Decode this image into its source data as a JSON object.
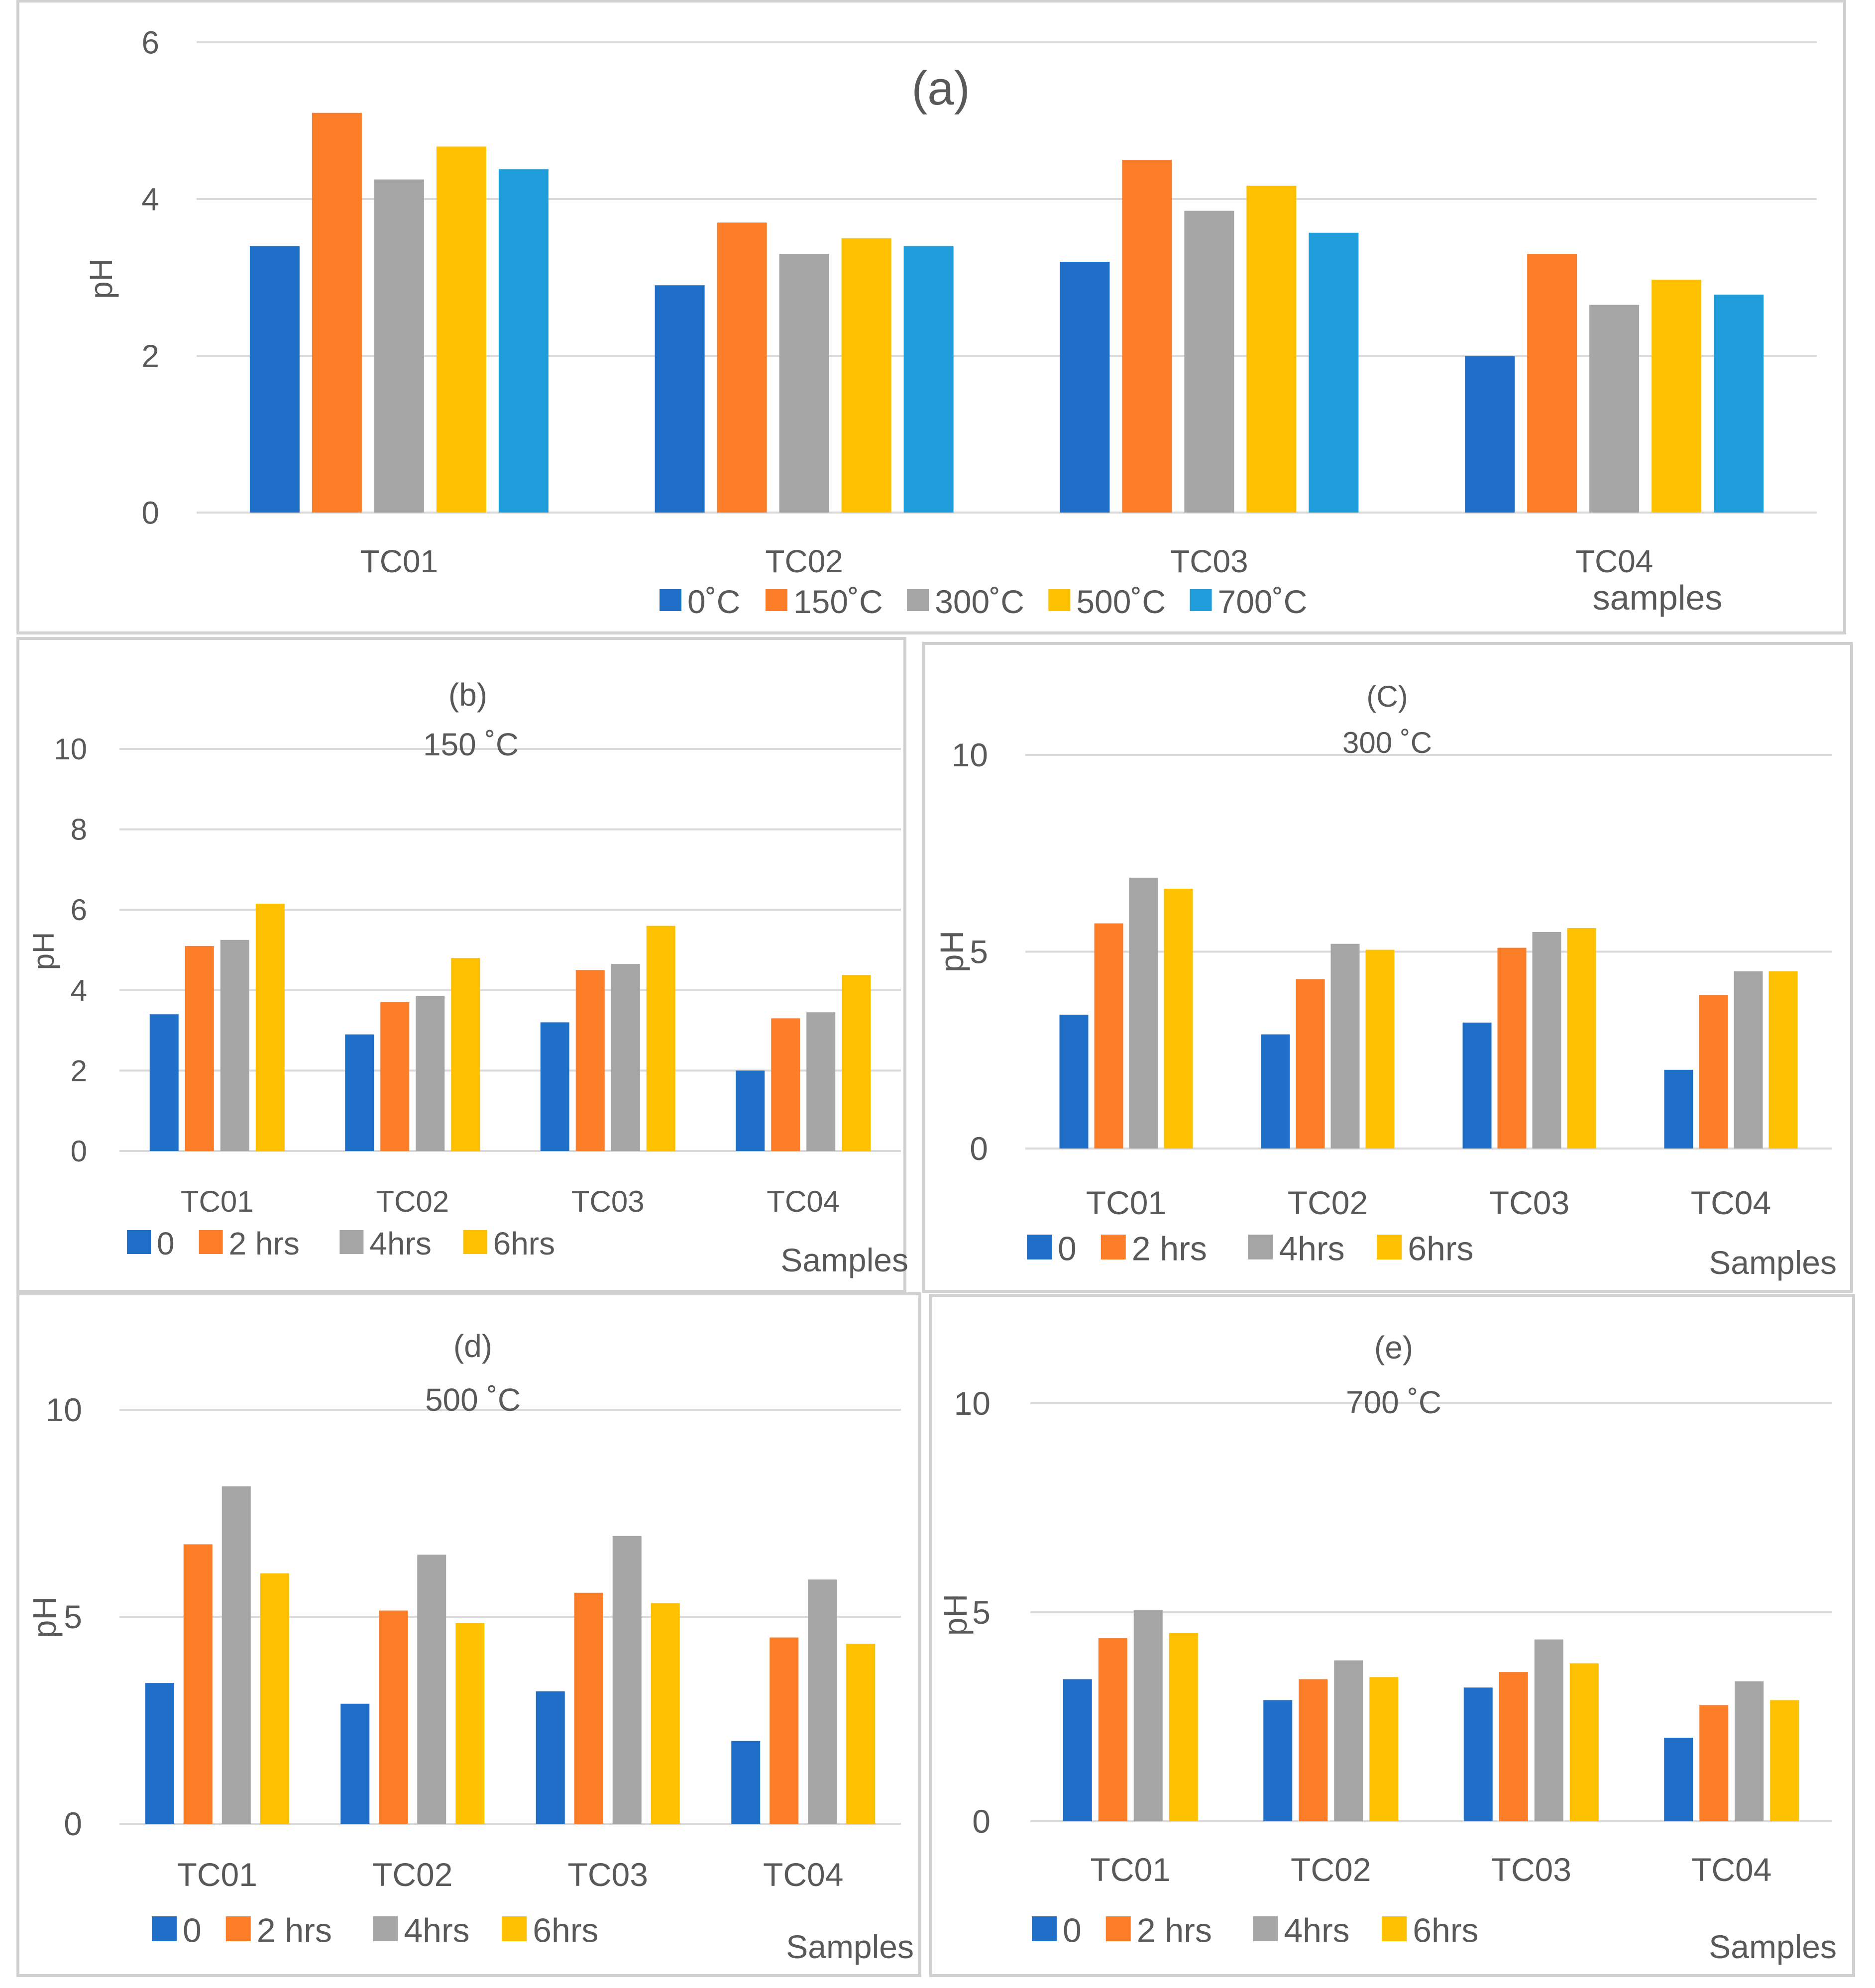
{
  "colors": {
    "c0": "#1F6FC9",
    "c1": "#FB7D27",
    "c2": "#A5A5A5",
    "c3": "#FFC000",
    "c4": "#1F9DDA",
    "grid": "#D9D9D9",
    "frame": "#D0D0D0",
    "text": "#595959"
  },
  "chart_data": [
    {
      "id": "a",
      "type": "bar",
      "title": "(a)",
      "subtitle": "",
      "xlabel": "samples",
      "ylabel": "pH",
      "ylim": [
        0,
        6
      ],
      "yticks": [
        0,
        2,
        4,
        6
      ],
      "grid": true,
      "legend_position": "bottom",
      "categories": [
        "TC01",
        "TC02",
        "TC03",
        "TC04"
      ],
      "series": [
        {
          "name": "0˚C",
          "color_key": "c0",
          "values": [
            3.4,
            2.9,
            3.2,
            2.0
          ]
        },
        {
          "name": "150˚C",
          "color_key": "c1",
          "values": [
            5.1,
            3.7,
            4.5,
            3.3
          ]
        },
        {
          "name": "300˚C",
          "color_key": "c2",
          "values": [
            4.25,
            3.3,
            3.85,
            2.65
          ]
        },
        {
          "name": "500˚C",
          "color_key": "c3",
          "values": [
            4.67,
            3.5,
            4.17,
            2.97
          ]
        },
        {
          "name": "700˚C",
          "color_key": "c4",
          "values": [
            4.38,
            3.4,
            3.57,
            2.78
          ]
        }
      ]
    },
    {
      "id": "b",
      "type": "bar",
      "title": "(b)",
      "subtitle": "150 ˚C",
      "xlabel": "Samples",
      "ylabel": "pH",
      "ylim": [
        0,
        10
      ],
      "yticks": [
        0,
        2,
        4,
        6,
        8,
        10
      ],
      "grid": true,
      "legend_position": "bottom",
      "categories": [
        "TC01",
        "TC02",
        "TC03",
        "TC04"
      ],
      "series": [
        {
          "name": "0",
          "color_key": "c0",
          "values": [
            3.4,
            2.9,
            3.2,
            2.0
          ]
        },
        {
          "name": "2 hrs",
          "color_key": "c1",
          "values": [
            5.1,
            3.7,
            4.5,
            3.3
          ]
        },
        {
          "name": "4hrs",
          "color_key": "c2",
          "values": [
            5.25,
            3.85,
            4.65,
            3.45
          ]
        },
        {
          "name": "6hrs",
          "color_key": "c3",
          "values": [
            6.15,
            4.8,
            5.6,
            4.38
          ]
        }
      ]
    },
    {
      "id": "c",
      "type": "bar",
      "title": "(C)",
      "subtitle": "300 ˚C",
      "xlabel": "Samples",
      "ylabel": "pH",
      "ylim": [
        0,
        10
      ],
      "yticks": [
        0,
        5,
        10
      ],
      "grid": true,
      "legend_position": "bottom",
      "categories": [
        "TC01",
        "TC02",
        "TC03",
        "TC04"
      ],
      "series": [
        {
          "name": "0",
          "color_key": "c0",
          "values": [
            3.4,
            2.9,
            3.2,
            2.0
          ]
        },
        {
          "name": "2 hrs",
          "color_key": "c1",
          "values": [
            5.72,
            4.3,
            5.1,
            3.9
          ]
        },
        {
          "name": "4hrs",
          "color_key": "c2",
          "values": [
            6.88,
            5.2,
            5.5,
            4.5
          ]
        },
        {
          "name": "6hrs",
          "color_key": "c3",
          "values": [
            6.6,
            5.05,
            5.6,
            4.5
          ]
        }
      ]
    },
    {
      "id": "d",
      "type": "bar",
      "title": "(d)",
      "subtitle": "500 ˚C",
      "xlabel": "Samples",
      "ylabel": "pH",
      "ylim": [
        0,
        10
      ],
      "yticks": [
        0,
        5,
        10
      ],
      "grid": true,
      "legend_position": "bottom",
      "categories": [
        "TC01",
        "TC02",
        "TC03",
        "TC04"
      ],
      "series": [
        {
          "name": "0",
          "color_key": "c0",
          "values": [
            3.4,
            2.9,
            3.2,
            2.0
          ]
        },
        {
          "name": "2 hrs",
          "color_key": "c1",
          "values": [
            6.75,
            5.15,
            5.58,
            4.5
          ]
        },
        {
          "name": "4hrs",
          "color_key": "c2",
          "values": [
            8.15,
            6.5,
            6.95,
            5.9
          ]
        },
        {
          "name": "6hrs",
          "color_key": "c3",
          "values": [
            6.05,
            4.85,
            5.33,
            4.35
          ]
        }
      ]
    },
    {
      "id": "e",
      "type": "bar",
      "title": "(e)",
      "subtitle": "700 ˚C",
      "xlabel": "Samples",
      "ylabel": "pH",
      "ylim": [
        0,
        10
      ],
      "yticks": [
        0,
        5,
        10
      ],
      "grid": true,
      "legend_position": "bottom",
      "categories": [
        "TC01",
        "TC02",
        "TC03",
        "TC04"
      ],
      "series": [
        {
          "name": "0",
          "color_key": "c0",
          "values": [
            3.4,
            2.9,
            3.2,
            2.0
          ]
        },
        {
          "name": "2 hrs",
          "color_key": "c1",
          "values": [
            4.38,
            3.4,
            3.57,
            2.78
          ]
        },
        {
          "name": "4hrs",
          "color_key": "c2",
          "values": [
            5.05,
            3.85,
            4.35,
            3.35
          ]
        },
        {
          "name": "6hrs",
          "color_key": "c3",
          "values": [
            4.5,
            3.45,
            3.78,
            2.9
          ]
        }
      ]
    }
  ]
}
